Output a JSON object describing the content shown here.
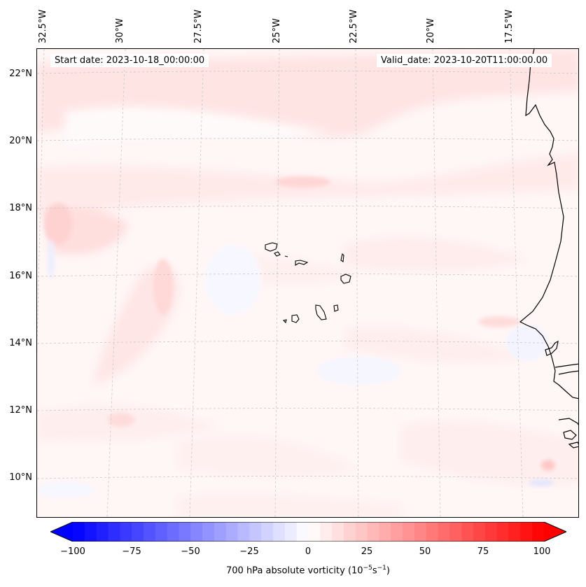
{
  "map": {
    "start_date": "Start date: 2023-10-18_00:00:00",
    "valid_date": "Valid_date: 2023-10-20T11:00:00.00",
    "lon_labels": [
      "32.5°W",
      "30°W",
      "27.5°W",
      "25°W",
      "22.5°W",
      "20°W",
      "17.5°W"
    ],
    "lat_labels": [
      "22°N",
      "20°N",
      "18°N",
      "16°N",
      "14°N",
      "12°N",
      "10°N"
    ],
    "field": "700 hPa absolute vorticity",
    "coastline_color": "#000000",
    "gridline_color": "#c8c8c8"
  },
  "colorbar": {
    "label_text": "700 hPa absolute vorticity (10",
    "label_exp1": "−5",
    "label_mid": "s",
    "label_exp2": "−1",
    "label_close": ")",
    "ticks": [
      "−100",
      "−75",
      "−50",
      "−25",
      "0",
      "25",
      "50",
      "75",
      "100"
    ],
    "min": -100,
    "max": 100,
    "levels": 41,
    "cmap_low": "#0000ff",
    "cmap_mid": "#ffffff",
    "cmap_high": "#ff0000"
  }
}
